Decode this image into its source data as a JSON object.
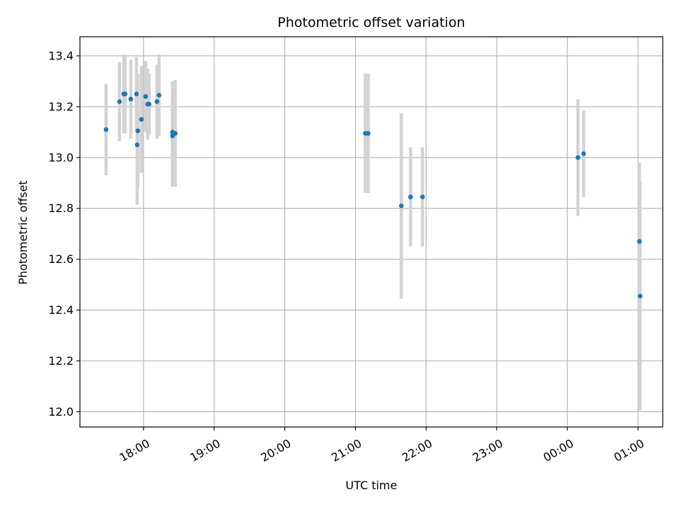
{
  "colors": {
    "point": "#1f77b4",
    "errorbar": "#d3d3d3",
    "grid": "#b0b0b0",
    "axes": "#000000",
    "background": "#ffffff"
  },
  "chart_data": {
    "type": "scatter",
    "title": "Photometric offset variation",
    "xlabel": "UTC time",
    "ylabel": "Photometric offset",
    "x_is_time": true,
    "x_unit": "hours since 17:00 UTC",
    "xlim": [
      0.1,
      8.35
    ],
    "ylim": [
      11.94,
      13.475
    ],
    "grid": true,
    "legend": "none",
    "xticks": [
      {
        "x": 1.0,
        "label": "18:00"
      },
      {
        "x": 2.0,
        "label": "19:00"
      },
      {
        "x": 3.0,
        "label": "20:00"
      },
      {
        "x": 4.0,
        "label": "21:00"
      },
      {
        "x": 5.0,
        "label": "22:00"
      },
      {
        "x": 6.0,
        "label": "23:00"
      },
      {
        "x": 7.0,
        "label": "00:00"
      },
      {
        "x": 8.0,
        "label": "01:00"
      }
    ],
    "yticks": [
      {
        "y": 12.0,
        "label": "12.0"
      },
      {
        "y": 12.2,
        "label": "12.2"
      },
      {
        "y": 12.4,
        "label": "12.4"
      },
      {
        "y": 12.6,
        "label": "12.6"
      },
      {
        "y": 12.8,
        "label": "12.8"
      },
      {
        "y": 13.0,
        "label": "13.0"
      },
      {
        "y": 13.2,
        "label": "13.2"
      },
      {
        "y": 13.4,
        "label": "13.4"
      }
    ],
    "series": [
      {
        "points": [
          {
            "x": 0.47,
            "y": 13.11,
            "err": 0.18
          },
          {
            "x": 0.66,
            "y": 13.22,
            "err": 0.155
          },
          {
            "x": 0.72,
            "y": 13.25,
            "err": 0.155
          },
          {
            "x": 0.74,
            "y": 13.25,
            "err": 0.155
          },
          {
            "x": 0.82,
            "y": 13.23,
            "err": 0.155
          },
          {
            "x": 0.9,
            "y": 13.25,
            "err": 0.145
          },
          {
            "x": 0.91,
            "y": 13.05,
            "err": 0.235
          },
          {
            "x": 0.92,
            "y": 13.105,
            "err": 0.225
          },
          {
            "x": 0.97,
            "y": 13.15,
            "err": 0.21
          },
          {
            "x": 1.03,
            "y": 13.24,
            "err": 0.14
          },
          {
            "x": 1.06,
            "y": 13.21,
            "err": 0.14
          },
          {
            "x": 1.08,
            "y": 13.21,
            "err": 0.12
          },
          {
            "x": 1.19,
            "y": 13.22,
            "err": 0.145
          },
          {
            "x": 1.22,
            "y": 13.245,
            "err": 0.16
          },
          {
            "x": 1.41,
            "y": 13.085,
            "err": 0.2
          },
          {
            "x": 1.41,
            "y": 13.1,
            "err": 0.2
          },
          {
            "x": 1.45,
            "y": 13.095,
            "err": 0.21
          },
          {
            "x": 4.14,
            "y": 13.095,
            "err": 0.235
          },
          {
            "x": 4.18,
            "y": 13.095,
            "err": 0.235
          },
          {
            "x": 4.65,
            "y": 12.81,
            "err": 0.365
          },
          {
            "x": 4.78,
            "y": 12.845,
            "err": 0.195
          },
          {
            "x": 4.95,
            "y": 12.845,
            "err": 0.195
          },
          {
            "x": 7.15,
            "y": 13.0,
            "err": 0.23
          },
          {
            "x": 7.23,
            "y": 13.015,
            "err": 0.17
          },
          {
            "x": 8.02,
            "y": 12.67,
            "err": 0.31
          },
          {
            "x": 8.03,
            "y": 12.455,
            "err": 0.45
          }
        ]
      }
    ]
  }
}
